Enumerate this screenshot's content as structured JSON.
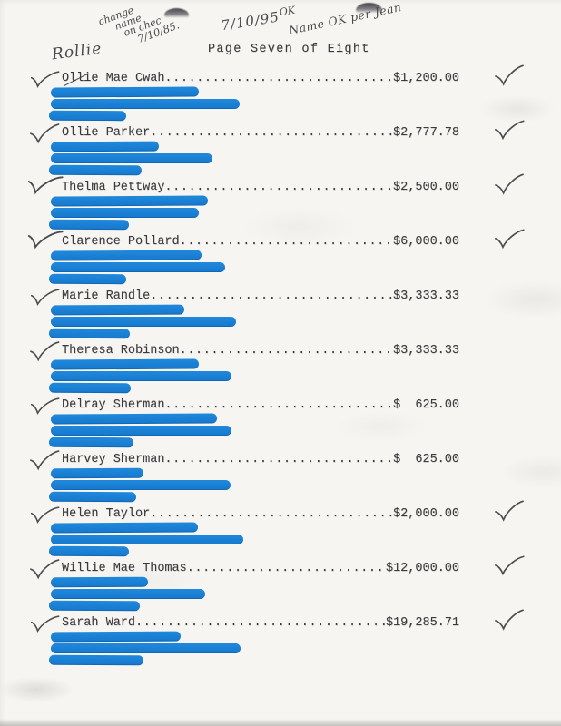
{
  "title": "Page Seven of Eight",
  "annotations": {
    "rollie": "Rollie",
    "change_note_lines": [
      "change",
      "name",
      "on chec",
      "7/10/85."
    ],
    "date_ok": "7/10/95",
    "ok_label": "OK",
    "name_ok": "Name OK per Jean"
  },
  "icons": {
    "checkmark": "✓",
    "redaction": "blue marker bar",
    "hole_punch": "punch shadow"
  },
  "colors": {
    "paper": "#f6f5f1",
    "typed_ink": "#3a393d",
    "pen_ink": "#4c4b4f",
    "redaction_blue": "#1a80d6"
  },
  "entries": [
    {
      "name": "Ollie Mae Cwah",
      "amount": "$1,200.00",
      "left_check": true,
      "right_check": true,
      "redaction_bars": [
        163,
        208,
        85
      ]
    },
    {
      "name": "Ollie Parker",
      "amount": "$2,777.78",
      "left_check": true,
      "right_check": true,
      "redaction_bars": [
        119,
        178,
        102
      ]
    },
    {
      "name": "Thelma Pettway",
      "amount": "$2,500.00",
      "left_check": true,
      "right_check": true,
      "redaction_bars": [
        173,
        163,
        88
      ]
    },
    {
      "name": "Clarence Pollard",
      "amount": "$6,000.00",
      "left_check": true,
      "right_check": true,
      "redaction_bars": [
        166,
        192,
        85
      ]
    },
    {
      "name": "Marie Randle",
      "amount": "$3,333.33",
      "left_check": true,
      "right_check": false,
      "redaction_bars": [
        147,
        204,
        89
      ]
    },
    {
      "name": "Theresa Robinson",
      "amount": "$3,333.33",
      "left_check": true,
      "right_check": false,
      "redaction_bars": [
        163,
        199,
        90
      ]
    },
    {
      "name": "Delray Sherman",
      "amount": "$  625.00",
      "left_check": true,
      "right_check": false,
      "redaction_bars": [
        183,
        199,
        93
      ]
    },
    {
      "name": "Harvey Sherman",
      "amount": "$  625.00",
      "left_check": true,
      "right_check": false,
      "redaction_bars": [
        102,
        198,
        96
      ]
    },
    {
      "name": "Helen Taylor",
      "amount": "$2,000.00",
      "left_check": true,
      "right_check": true,
      "redaction_bars": [
        162,
        212,
        88
      ]
    },
    {
      "name": "Willie Mae Thomas",
      "amount": "$12,000.00",
      "left_check": true,
      "right_check": true,
      "redaction_bars": [
        107,
        170,
        100
      ]
    },
    {
      "name": "Sarah Ward",
      "amount": "$19,285.71",
      "left_check": true,
      "right_check": true,
      "redaction_bars": [
        143,
        209,
        104
      ]
    }
  ]
}
